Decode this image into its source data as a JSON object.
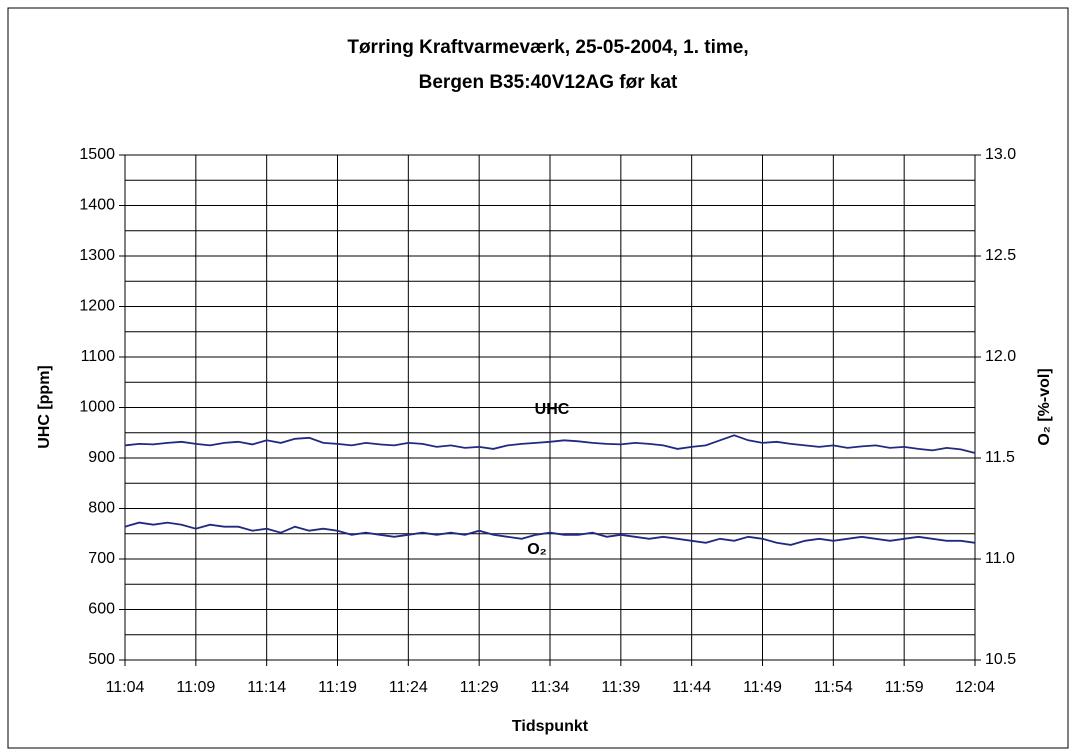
{
  "chart_data": {
    "type": "line",
    "title": [
      "Tørring Kraftvarmeværk, 25-05-2004, 1. time,",
      "Bergen B35:40V12AG før kat"
    ],
    "x_label": "Tidspunkt",
    "y_label": "UHC  [ppm]",
    "y2_label": "O₂  [%-vol]",
    "annotations": [
      "UHC",
      "O₂"
    ],
    "categories": [
      "11:04",
      null,
      null,
      null,
      null,
      "11:09",
      null,
      null,
      null,
      null,
      "11:14",
      null,
      null,
      null,
      null,
      "11:19",
      null,
      null,
      null,
      null,
      "11:24",
      null,
      null,
      null,
      null,
      "11:29",
      null,
      null,
      null,
      null,
      "11:34",
      null,
      null,
      null,
      null,
      "11:39",
      null,
      null,
      null,
      null,
      "11:44",
      null,
      null,
      null,
      null,
      "11:49",
      null,
      null,
      null,
      null,
      "11:54",
      null,
      null,
      null,
      null,
      "11:59",
      null,
      null,
      null,
      null,
      "12:04"
    ],
    "series": [
      {
        "name": "UHC",
        "color": "#1f2a80",
        "values": [
          925,
          928,
          927,
          930,
          932,
          928,
          925,
          930,
          932,
          927,
          935,
          930,
          938,
          940,
          930,
          928,
          925,
          930,
          927,
          925,
          930,
          928,
          922,
          925,
          920,
          922,
          918,
          925,
          928,
          930,
          932,
          935,
          933,
          930,
          928,
          927,
          930,
          928,
          925,
          918,
          922,
          925,
          935,
          945,
          935,
          930,
          932,
          928,
          925,
          922,
          925,
          920,
          923,
          925,
          920,
          922,
          918,
          915,
          920,
          917,
          910
        ]
      },
      {
        "name": "O₂",
        "color": "#1f2a80",
        "axis": "y2",
        "values": [
          11.16,
          11.18,
          11.17,
          11.18,
          11.17,
          11.15,
          11.17,
          11.16,
          11.16,
          11.14,
          11.15,
          11.13,
          11.16,
          11.14,
          11.15,
          11.14,
          11.12,
          11.13,
          11.12,
          11.11,
          11.12,
          11.13,
          11.12,
          11.13,
          11.12,
          11.14,
          11.12,
          11.11,
          11.1,
          11.12,
          11.13,
          11.12,
          11.12,
          11.13,
          11.11,
          11.12,
          11.11,
          11.1,
          11.11,
          11.1,
          11.09,
          11.08,
          11.1,
          11.09,
          11.11,
          11.1,
          11.08,
          11.07,
          11.09,
          11.1,
          11.09,
          11.1,
          11.11,
          11.1,
          11.09,
          11.1,
          11.11,
          11.1,
          11.09,
          11.09,
          11.08
        ]
      }
    ],
    "ylim": [
      500,
      1500
    ],
    "yticks": [
      500,
      600,
      700,
      800,
      900,
      1000,
      1100,
      1200,
      1300,
      1400,
      1500
    ],
    "minor_yticks": [
      550,
      650,
      750,
      850,
      950,
      1050,
      1150,
      1250,
      1350,
      1450
    ],
    "y2lim": [
      10.5,
      13.0
    ],
    "y2ticks": [
      10.5,
      {
        "value": 11,
        "label": "11.0"
      },
      11.5,
      {
        "value": 12,
        "label": "12.0"
      },
      12.5,
      {
        "value": 13,
        "label": "13.0"
      }
    ],
    "grid": true
  }
}
